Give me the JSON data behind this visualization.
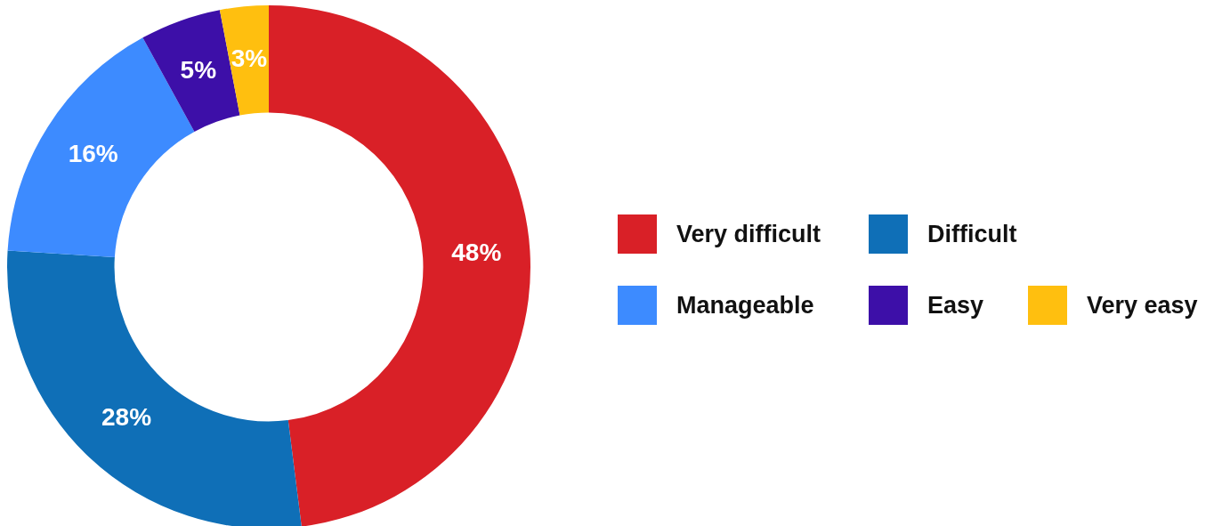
{
  "chart_data": {
    "type": "donut",
    "categories": [
      "Very difficult",
      "Difficult",
      "Manageable",
      "Easy",
      "Very easy"
    ],
    "values": [
      48,
      28,
      16,
      5,
      3
    ],
    "colors": [
      "#d92027",
      "#0f6fb7",
      "#3d8bff",
      "#3d0fa8",
      "#ffbf0f"
    ],
    "value_labels": [
      "48%",
      "28%",
      "16%",
      "5%",
      "3%"
    ],
    "legend": "right"
  }
}
